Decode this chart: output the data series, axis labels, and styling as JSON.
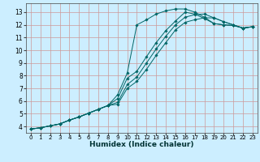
{
  "xlabel": "Humidex (Indice chaleur)",
  "bg_color": "#cceeff",
  "line_color": "#006666",
  "grid_color": "#cc9999",
  "xlim": [
    -0.5,
    23.5
  ],
  "ylim": [
    3.5,
    13.7
  ],
  "xticks": [
    0,
    1,
    2,
    3,
    4,
    5,
    6,
    7,
    8,
    9,
    10,
    11,
    12,
    13,
    14,
    15,
    16,
    17,
    18,
    19,
    20,
    21,
    22,
    23
  ],
  "yticks": [
    4,
    5,
    6,
    7,
    8,
    9,
    10,
    11,
    12,
    13
  ],
  "curves": [
    {
      "x": [
        0,
        1,
        2,
        3,
        4,
        5,
        6,
        7,
        8,
        9,
        10,
        11,
        12,
        13,
        14,
        15,
        16,
        17,
        18,
        19,
        20,
        21,
        22,
        23
      ],
      "y": [
        3.8,
        3.9,
        4.05,
        4.2,
        4.5,
        4.75,
        5.05,
        5.35,
        5.65,
        6.5,
        8.2,
        12.0,
        12.4,
        12.85,
        13.1,
        13.25,
        13.25,
        13.0,
        12.6,
        12.1,
        12.0,
        11.95,
        11.75,
        11.85
      ]
    },
    {
      "x": [
        0,
        1,
        2,
        3,
        4,
        5,
        6,
        7,
        8,
        9,
        10,
        11,
        12,
        13,
        14,
        15,
        16,
        17,
        18,
        19,
        20,
        21,
        22,
        23
      ],
      "y": [
        3.8,
        3.9,
        4.05,
        4.2,
        4.5,
        4.75,
        5.05,
        5.35,
        5.65,
        6.2,
        7.8,
        8.35,
        9.5,
        10.6,
        11.55,
        12.3,
        13.0,
        12.85,
        12.5,
        12.1,
        12.0,
        11.95,
        11.75,
        11.85
      ]
    },
    {
      "x": [
        0,
        1,
        2,
        3,
        4,
        5,
        6,
        7,
        8,
        9,
        10,
        11,
        12,
        13,
        14,
        15,
        16,
        17,
        18,
        19,
        20,
        21,
        22,
        23
      ],
      "y": [
        3.8,
        3.9,
        4.05,
        4.2,
        4.5,
        4.75,
        5.05,
        5.35,
        5.65,
        5.9,
        7.3,
        7.9,
        9.0,
        10.1,
        11.1,
        12.0,
        12.6,
        12.8,
        12.85,
        12.55,
        12.25,
        12.0,
        11.75,
        11.85
      ]
    },
    {
      "x": [
        0,
        1,
        2,
        3,
        4,
        5,
        6,
        7,
        8,
        9,
        10,
        11,
        12,
        13,
        14,
        15,
        16,
        17,
        18,
        19,
        20,
        21,
        22,
        23
      ],
      "y": [
        3.8,
        3.9,
        4.05,
        4.2,
        4.5,
        4.75,
        5.05,
        5.35,
        5.65,
        5.75,
        7.0,
        7.55,
        8.5,
        9.6,
        10.6,
        11.6,
        12.2,
        12.4,
        12.55,
        12.55,
        12.25,
        12.0,
        11.75,
        11.85
      ]
    }
  ]
}
